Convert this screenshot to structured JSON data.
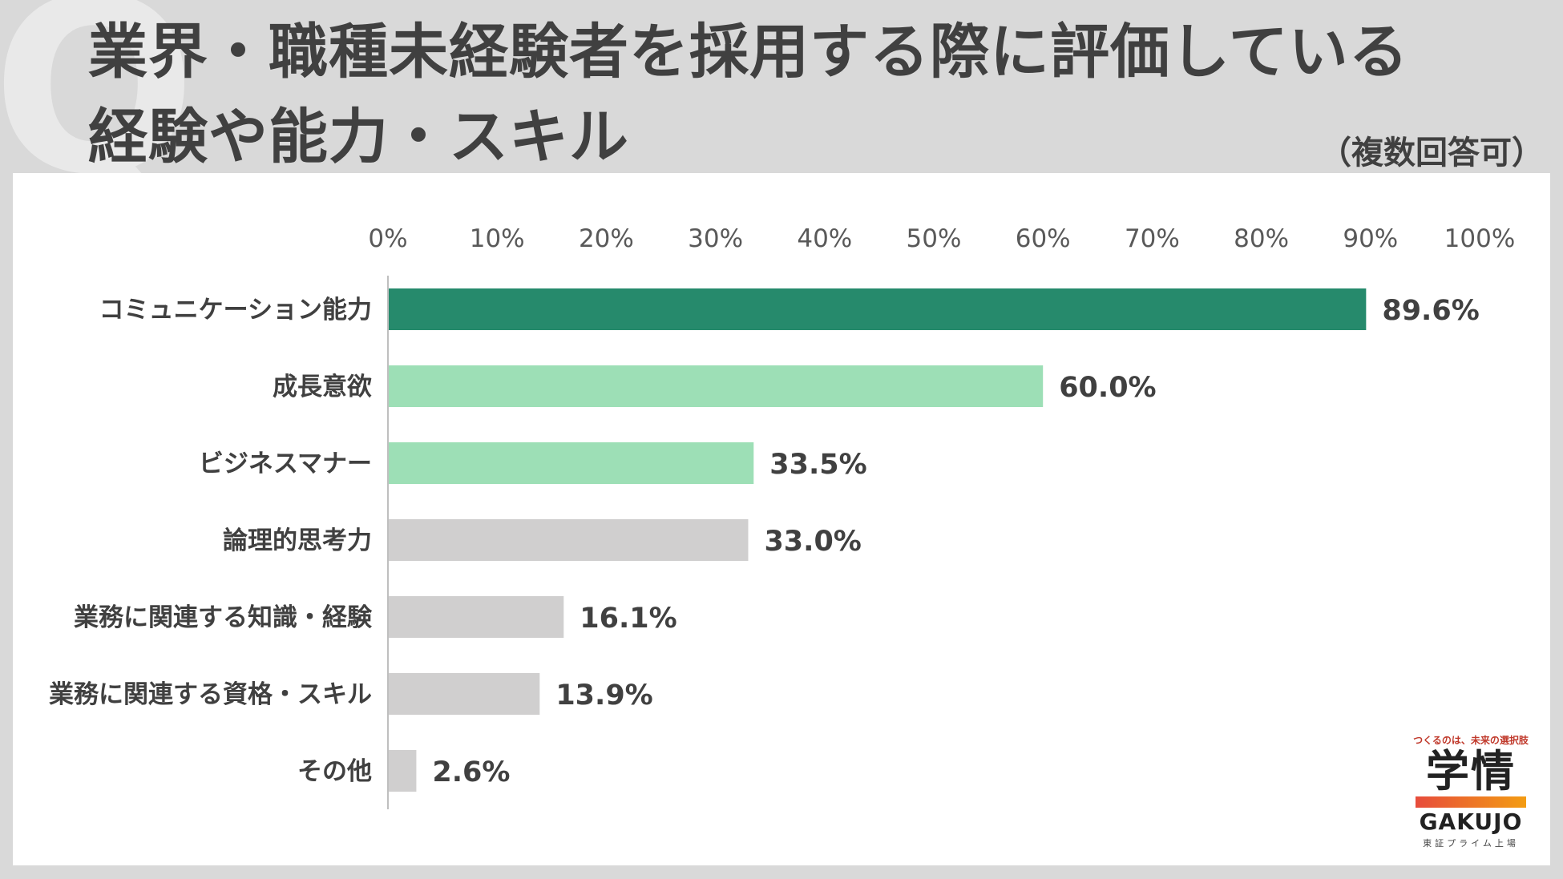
{
  "header": {
    "title_line1": "業界・職種未経験者を採用する際に評価している",
    "title_line2": "経験や能力・スキル",
    "note": "（複数回答可）"
  },
  "colors": {
    "highlight": "#268a6c",
    "secondary": "#9ddfb6",
    "other": "#d0cfcf",
    "background": "#d9d9d9"
  },
  "chart_data": {
    "type": "bar",
    "orientation": "horizontal",
    "title": "業界・職種未経験者を採用する際に評価している経験や能力・スキル",
    "categories": [
      "コミュニケーション能力",
      "成長意欲",
      "ビジネスマナー",
      "論理的思考力",
      "業務に関連する知識・経験",
      "業務に関連する資格・スキル",
      "その他"
    ],
    "values": [
      89.6,
      60.0,
      33.5,
      33.0,
      16.1,
      13.9,
      2.6
    ],
    "value_labels": [
      "89.6%",
      "60.0%",
      "33.5%",
      "33.0%",
      "16.1%",
      "13.9%",
      "2.6%"
    ],
    "bar_colors": [
      "#268a6c",
      "#9ddfb6",
      "#9ddfb6",
      "#d0cfcf",
      "#d0cfcf",
      "#d0cfcf",
      "#d0cfcf"
    ],
    "xlim": [
      0,
      100
    ],
    "xticks": [
      0,
      10,
      20,
      30,
      40,
      50,
      60,
      70,
      80,
      90,
      100
    ],
    "xtick_labels": [
      "0%",
      "10%",
      "20%",
      "30%",
      "40%",
      "50%",
      "60%",
      "70%",
      "80%",
      "90%",
      "100%"
    ],
    "axis_position": "top",
    "grid": false,
    "legend": "none"
  },
  "logo": {
    "tagline": "つくるのは、未来の選択肢",
    "mark": "学情",
    "name": "GAKUJO",
    "sub": "東証プライム上場"
  }
}
